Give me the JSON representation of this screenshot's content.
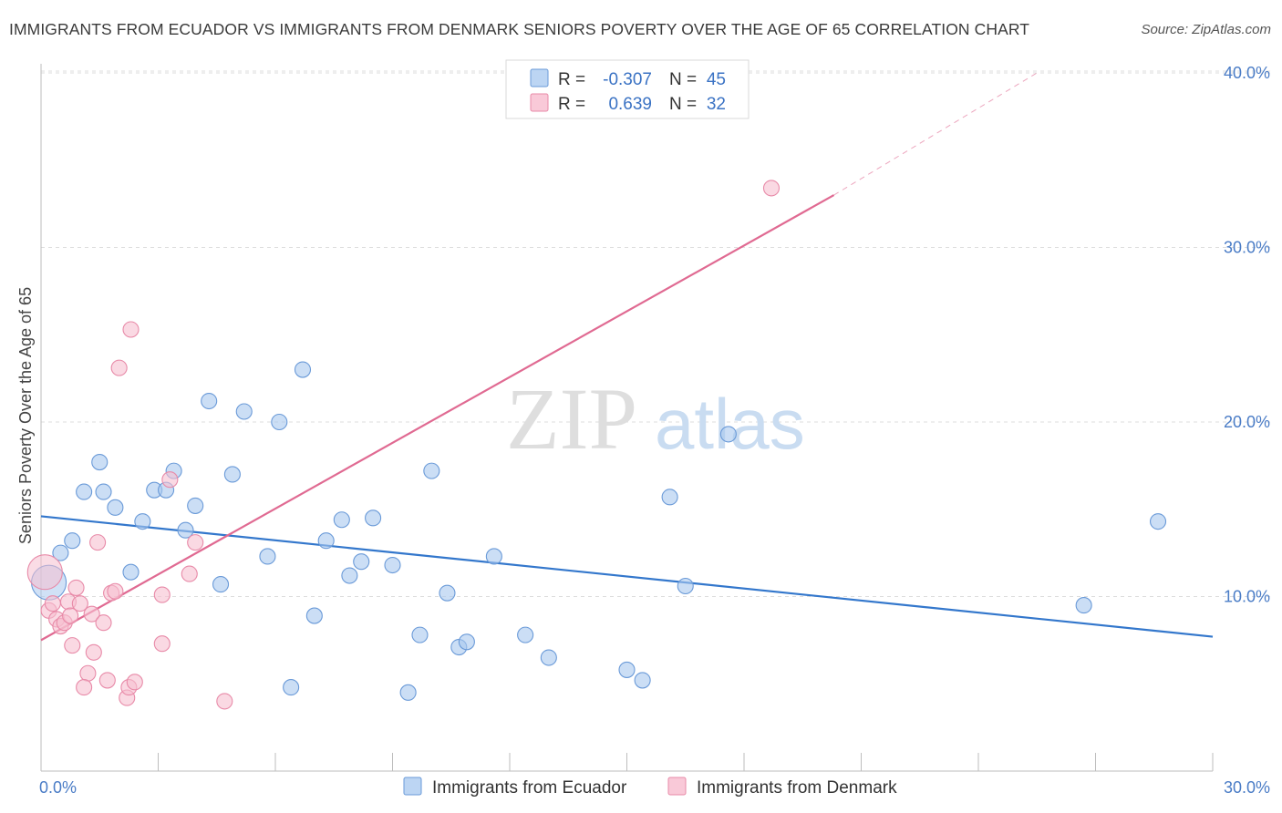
{
  "header": {
    "title": "IMMIGRANTS FROM ECUADOR VS IMMIGRANTS FROM DENMARK SENIORS POVERTY OVER THE AGE OF 65 CORRELATION CHART",
    "source": "Source: ZipAtlas.com"
  },
  "watermark": {
    "zip": "ZIP",
    "atlas": "atlas"
  },
  "legend": {
    "r_label": "R =",
    "n_label": "N =",
    "items": [
      {
        "r": "-0.307",
        "n": "45"
      },
      {
        "r": "0.639",
        "n": "32"
      }
    ]
  },
  "chart_data": {
    "type": "scatter",
    "title": "IMMIGRANTS FROM ECUADOR VS IMMIGRANTS FROM DENMARK SENIORS POVERTY OVER THE AGE OF 65 CORRELATION CHART",
    "xlabel": "",
    "ylabel": "Seniors Poverty Over the Age of 65",
    "xlim": [
      0,
      30
    ],
    "ylim": [
      0,
      40
    ],
    "x_tick_labels": [
      "0.0%",
      "30.0%"
    ],
    "y_ticks": [
      10,
      20,
      30,
      40
    ],
    "y_tick_labels": [
      "10.0%",
      "20.0%",
      "30.0%",
      "40.0%"
    ],
    "grid": "horizontal dashed",
    "legend_position": "top-center",
    "series": [
      {
        "name": "Immigrants from Ecuador",
        "color": "#a9c8ee",
        "stroke": "#6a9ad8",
        "trend_color": "#3377cc",
        "trend": {
          "x": [
            0,
            30
          ],
          "y": [
            14.6,
            7.7
          ]
        },
        "points": [
          {
            "x": 0.2,
            "y": 10.8,
            "big": true
          },
          {
            "x": 0.5,
            "y": 12.5
          },
          {
            "x": 0.8,
            "y": 13.2
          },
          {
            "x": 1.1,
            "y": 16.0
          },
          {
            "x": 1.5,
            "y": 17.7
          },
          {
            "x": 1.6,
            "y": 16.0
          },
          {
            "x": 1.9,
            "y": 15.1
          },
          {
            "x": 2.3,
            "y": 11.4
          },
          {
            "x": 2.6,
            "y": 14.3
          },
          {
            "x": 2.9,
            "y": 16.1
          },
          {
            "x": 3.2,
            "y": 16.1
          },
          {
            "x": 3.4,
            "y": 17.2
          },
          {
            "x": 3.7,
            "y": 13.8
          },
          {
            "x": 3.95,
            "y": 15.2
          },
          {
            "x": 4.3,
            "y": 21.2
          },
          {
            "x": 4.6,
            "y": 10.7
          },
          {
            "x": 4.9,
            "y": 17.0
          },
          {
            "x": 5.2,
            "y": 20.6
          },
          {
            "x": 5.8,
            "y": 12.3
          },
          {
            "x": 6.1,
            "y": 20.0
          },
          {
            "x": 6.4,
            "y": 4.8
          },
          {
            "x": 6.7,
            "y": 23.0
          },
          {
            "x": 7.0,
            "y": 8.9
          },
          {
            "x": 7.3,
            "y": 13.2
          },
          {
            "x": 7.7,
            "y": 14.4
          },
          {
            "x": 7.9,
            "y": 11.2
          },
          {
            "x": 8.2,
            "y": 12.0
          },
          {
            "x": 8.5,
            "y": 14.5
          },
          {
            "x": 9.0,
            "y": 11.8
          },
          {
            "x": 9.4,
            "y": 4.5
          },
          {
            "x": 9.7,
            "y": 7.8
          },
          {
            "x": 10.0,
            "y": 17.2
          },
          {
            "x": 10.4,
            "y": 10.2
          },
          {
            "x": 10.7,
            "y": 7.1
          },
          {
            "x": 10.9,
            "y": 7.4
          },
          {
            "x": 11.6,
            "y": 12.3
          },
          {
            "x": 12.4,
            "y": 7.8
          },
          {
            "x": 13.0,
            "y": 6.5
          },
          {
            "x": 15.0,
            "y": 5.8
          },
          {
            "x": 15.4,
            "y": 5.2
          },
          {
            "x": 16.1,
            "y": 15.7
          },
          {
            "x": 16.5,
            "y": 10.6
          },
          {
            "x": 17.6,
            "y": 19.3
          },
          {
            "x": 26.7,
            "y": 9.5
          },
          {
            "x": 28.6,
            "y": 14.3
          }
        ]
      },
      {
        "name": "Immigrants from Denmark",
        "color": "#f6bfd0",
        "stroke": "#e88aa8",
        "trend_color": "#e06a92",
        "trend": {
          "x": [
            0,
            20.3
          ],
          "y": [
            7.5,
            33.0
          ]
        },
        "trend_extension": {
          "x": [
            20.3,
            25.5
          ],
          "y": [
            33.0,
            40.0
          ]
        },
        "points": [
          {
            "x": 0.1,
            "y": 11.4,
            "big": true
          },
          {
            "x": 0.2,
            "y": 9.2
          },
          {
            "x": 0.3,
            "y": 9.6
          },
          {
            "x": 0.4,
            "y": 8.7
          },
          {
            "x": 0.5,
            "y": 8.3
          },
          {
            "x": 0.6,
            "y": 8.5
          },
          {
            "x": 0.7,
            "y": 9.7
          },
          {
            "x": 0.75,
            "y": 8.9
          },
          {
            "x": 0.8,
            "y": 7.2
          },
          {
            "x": 0.9,
            "y": 10.5
          },
          {
            "x": 1.0,
            "y": 9.6
          },
          {
            "x": 1.2,
            "y": 5.6
          },
          {
            "x": 1.1,
            "y": 4.8
          },
          {
            "x": 1.3,
            "y": 9.0
          },
          {
            "x": 1.35,
            "y": 6.8
          },
          {
            "x": 1.45,
            "y": 13.1
          },
          {
            "x": 1.6,
            "y": 8.5
          },
          {
            "x": 1.7,
            "y": 5.2
          },
          {
            "x": 1.8,
            "y": 10.2
          },
          {
            "x": 1.9,
            "y": 10.3
          },
          {
            "x": 2.0,
            "y": 23.1
          },
          {
            "x": 2.2,
            "y": 4.2
          },
          {
            "x": 2.25,
            "y": 4.8
          },
          {
            "x": 2.3,
            "y": 25.3
          },
          {
            "x": 2.4,
            "y": 5.1
          },
          {
            "x": 3.1,
            "y": 10.1
          },
          {
            "x": 3.1,
            "y": 7.3
          },
          {
            "x": 3.3,
            "y": 16.7
          },
          {
            "x": 3.8,
            "y": 11.3
          },
          {
            "x": 3.95,
            "y": 13.1
          },
          {
            "x": 4.7,
            "y": 4.0
          },
          {
            "x": 18.7,
            "y": 33.4
          }
        ]
      }
    ]
  }
}
